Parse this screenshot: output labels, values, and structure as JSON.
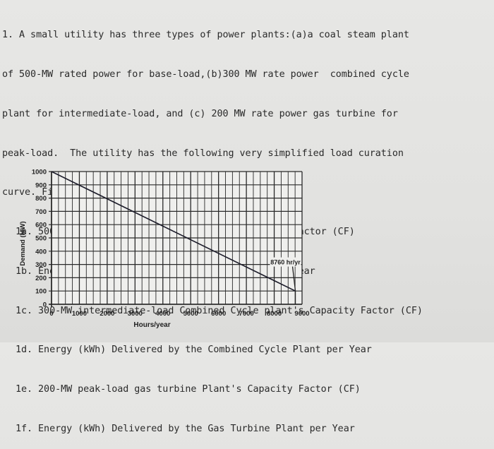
{
  "question": {
    "lines": [
      "1. A small utility has three types of power plants:(a)a coal steam plant",
      "of 500-MW rated power for base-load,(b)300 MW rate power  combined cycle",
      "plant for intermediate-load, and (c) 200 MW rate power gas turbine for",
      "peak-load.  The utility has the following very simplified load curation",
      "curve. Find,"
    ],
    "parts": [
      "1a. 500-MW base-load Coal Steam Plant's Capacity Factor (CF)",
      "1b. Energy (kWh) Delivered by the Coal Plant per Year",
      "1c. 300-MW intermediate-load Combined Cycle plant's Capacity Factor (CF)",
      "1d. Energy (kWh) Delivered by the Combined Cycle Plant per Year",
      "1e. 200-MW peak-load gas turbine Plant's Capacity Factor (CF)",
      "1f. Energy (kWh) Delivered by the Gas Turbine Plant per Year"
    ]
  },
  "chart_data": {
    "type": "line",
    "title": "",
    "xlabel": "Hours/year",
    "ylabel": "Demand (MW)",
    "xlim": [
      0,
      9000
    ],
    "ylim": [
      0,
      1000
    ],
    "x_ticks": [
      "0",
      "1000",
      "2000",
      "3000",
      "4000",
      "5000",
      "6000",
      "7000",
      "8000",
      "9000"
    ],
    "y_ticks": [
      "0",
      "100",
      "200",
      "300",
      "400",
      "500",
      "600",
      "700",
      "800",
      "900",
      "1000"
    ],
    "series": [
      {
        "x": [
          0,
          8760
        ],
        "y": [
          1000,
          100
        ]
      }
    ],
    "annotations": [
      {
        "text": "8760 hr/yr",
        "x": 8760,
        "y": 300
      }
    ],
    "grid": true,
    "colors": {
      "line": "#1c1c2a",
      "grid": "#2a2a2a"
    }
  }
}
